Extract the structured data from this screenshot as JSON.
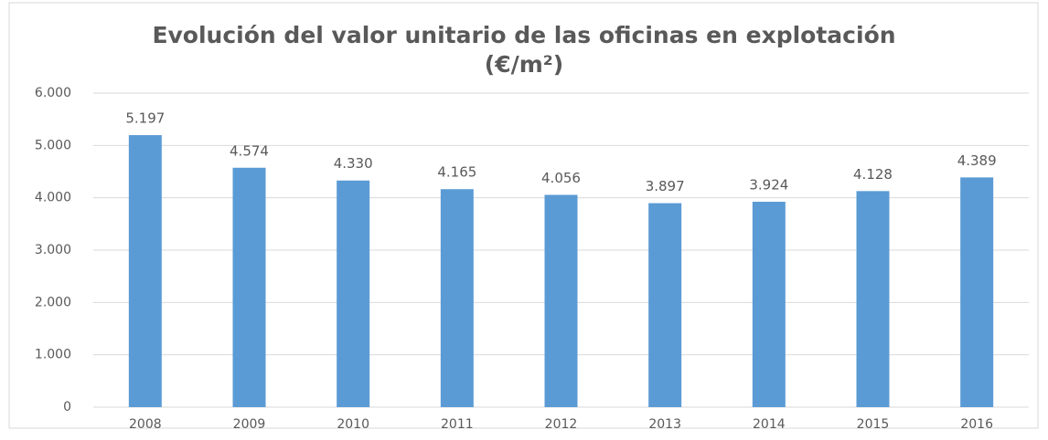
{
  "chart_data": {
    "type": "bar",
    "title": [
      "Evolución del valor unitario de las oficinas en explotación",
      "(€/m²)"
    ],
    "categories": [
      "2008",
      "2009",
      "2010",
      "2011",
      "2012",
      "2013",
      "2014",
      "2015",
      "2016"
    ],
    "values": [
      5197,
      4574,
      4330,
      4165,
      4056,
      3897,
      3924,
      4128,
      4389
    ],
    "value_labels": [
      "5.197",
      "4.574",
      "4.330",
      "4.165",
      "4.056",
      "3.897",
      "3.924",
      "4.128",
      "4.389"
    ],
    "color": "#5b9bd5",
    "ylim": [
      0,
      6000
    ],
    "yticks": [
      0,
      {
        "value": 1000,
        "label": "1.000"
      },
      {
        "value": 2000,
        "label": "2.000"
      },
      {
        "value": 3000,
        "label": "3.000"
      },
      {
        "value": 4000,
        "label": "4.000"
      },
      {
        "value": 5000,
        "label": "5.000"
      },
      {
        "value": 6000,
        "label": "6.000"
      }
    ],
    "grid": true
  }
}
